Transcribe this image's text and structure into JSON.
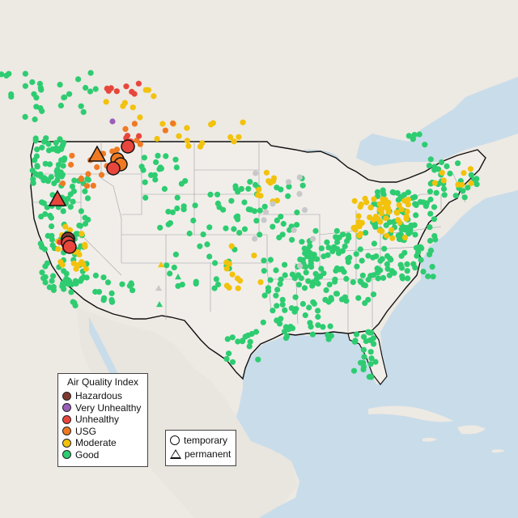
{
  "map": {
    "colors": {
      "water": "#c9dcea",
      "land": "#ede9e3",
      "land_us": "#f1eeea",
      "border": "#111111",
      "state_lines": "#9a9a9a"
    },
    "aqi_colors": {
      "hazardous": "#7e3a30",
      "very_unhealthy": "#9a5fb8",
      "unhealthy": "#e8463c",
      "usg": "#ef7a23",
      "moderate": "#f2c20c",
      "good": "#2ecc71",
      "no_data": "#c8c8c8"
    }
  },
  "legend": {
    "title": "Air Quality Index",
    "items": [
      {
        "label": "Hazardous",
        "key": "hazardous"
      },
      {
        "label": "Very Unhealthy",
        "key": "very_unhealthy"
      },
      {
        "label": "Unhealthy",
        "key": "unhealthy"
      },
      {
        "label": "USG",
        "key": "usg"
      },
      {
        "label": "Moderate",
        "key": "moderate"
      },
      {
        "label": "Good",
        "key": "good"
      }
    ]
  },
  "monitor_type_legend": {
    "items": [
      {
        "label": "temporary",
        "shape": "circle"
      },
      {
        "label": "permanent",
        "shape": "triangle"
      }
    ]
  }
}
